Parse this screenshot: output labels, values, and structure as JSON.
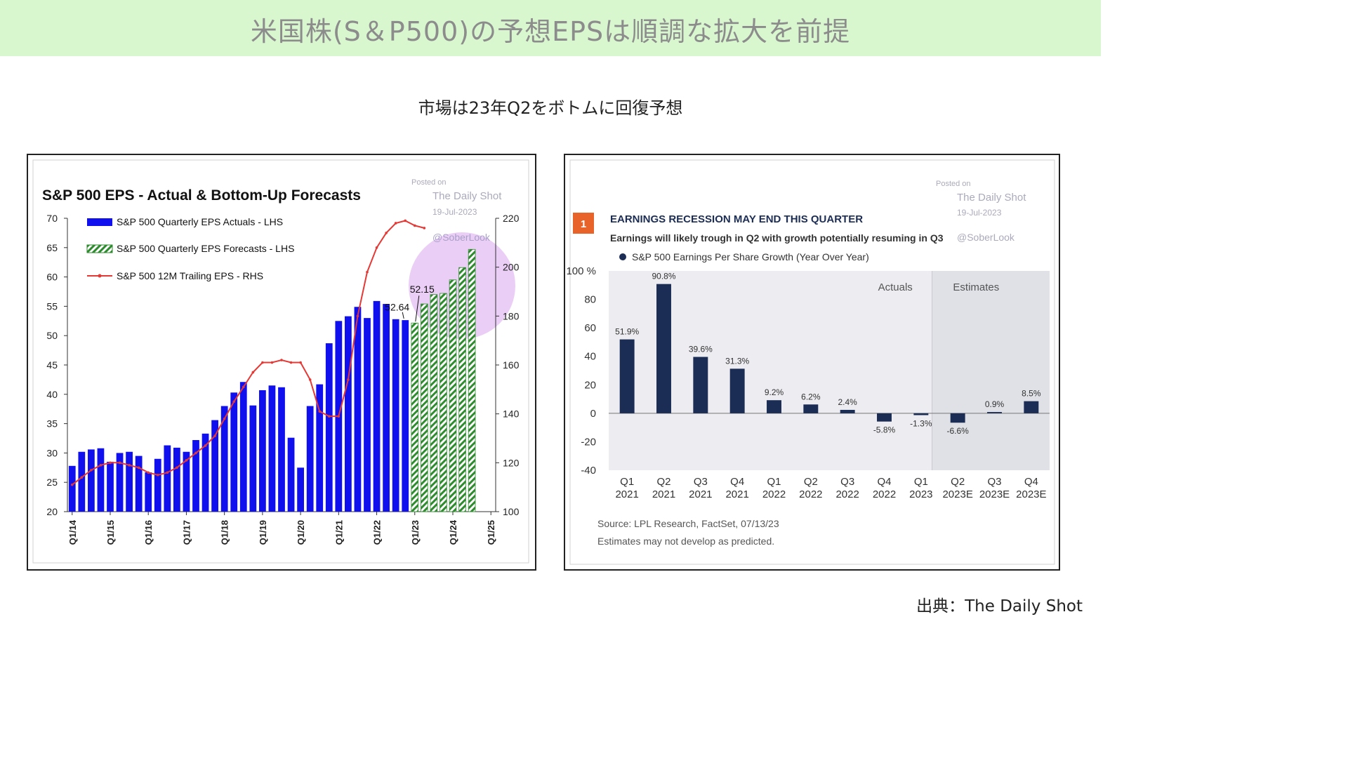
{
  "header": {
    "title": "米国株(S＆P500)の予想EPSは順調な拡大を前提",
    "subtitle": "市場は23年Q2をボトムに回復予想"
  },
  "source": "出典：The Daily Shot",
  "colors": {
    "banner_bg": "#d9f7cf",
    "actual_bar": "#1010ee",
    "forecast_bar": "#2e8b2e",
    "trailing_line": "#e53935",
    "highlight": "#d8a6ee",
    "navy_bar": "#1c2d55",
    "plot_bg": "#ececf1",
    "estimate_bg": "#dfe1e6",
    "label_badge": "#e8632a"
  },
  "chart_data": [
    {
      "type": "bar",
      "title": "S&P 500 EPS - Actual & Bottom-Up Forecasts",
      "watermark": [
        "Posted on",
        "The Daily Shot",
        "19-Jul-2023",
        "@SoberLook"
      ],
      "legend": [
        "S&P 500 Quarterly EPS Actuals - LHS",
        "S&P 500 Quarterly EPS Forecasts - LHS",
        "S&P 500 12M Trailing EPS - RHS"
      ],
      "legend_position": "top-left",
      "ylim_left": [
        20,
        70
      ],
      "yticks_left": [
        "70",
        "65",
        "60",
        "55",
        "50",
        "45",
        "40",
        "35",
        "30",
        "25",
        "20"
      ],
      "ylim_right": [
        100,
        220
      ],
      "yticks_right": [
        "220",
        "200",
        "180",
        "160",
        "140",
        "120",
        "100"
      ],
      "xticks": [
        "Q1/14",
        "Q1/15",
        "Q1/16",
        "Q1/17",
        "Q1/18",
        "Q1/19",
        "Q1/20",
        "Q1/21",
        "Q1/22",
        "Q1/23",
        "Q1/24",
        "Q1/25"
      ],
      "annotations": [
        "52.64",
        "52.15"
      ],
      "series": [
        {
          "name": "S&P 500 Quarterly EPS Actuals - LHS",
          "values": [
            27.8,
            30.2,
            30.6,
            30.8,
            28.5,
            30.0,
            30.2,
            29.5,
            26.7,
            29.0,
            31.3,
            30.9,
            30.2,
            32.2,
            33.3,
            35.6,
            38.0,
            40.3,
            42.1,
            38.1,
            40.7,
            41.5,
            41.2,
            32.6,
            27.5,
            38.0,
            41.7,
            48.7,
            52.5,
            53.3,
            54.9,
            53.0,
            55.9,
            55.4,
            52.8,
            52.64
          ]
        },
        {
          "name": "S&P 500 Quarterly EPS Forecasts - LHS",
          "values": [
            52.15,
            55.4,
            57.0,
            57.2,
            59.5,
            61.6,
            64.7
          ]
        },
        {
          "name": "S&P 500 12M Trailing EPS - RHS",
          "values": [
            111,
            114,
            117,
            119,
            120,
            120,
            119,
            118,
            116,
            115,
            116,
            118,
            121,
            124,
            127,
            131,
            138,
            145,
            151,
            157,
            161,
            161,
            162,
            161,
            161,
            154,
            141,
            139,
            139,
            154,
            180,
            198,
            208,
            214,
            218,
            219,
            217,
            216
          ]
        }
      ]
    },
    {
      "type": "bar",
      "badge": "1",
      "title": "EARNINGS RECESSION MAY END THIS QUARTER",
      "subtitle": "Earnings will likely trough in Q2 with growth potentially resuming in Q3",
      "legend": "S&P 500 Earnings Per Share Growth (Year Over Year)",
      "watermark": [
        "Posted on",
        "The Daily Shot",
        "19-Jul-2023",
        "@SoberLook"
      ],
      "region_labels": [
        "Actuals",
        "Estimates"
      ],
      "ylim": [
        -40,
        100
      ],
      "yticks": [
        "100 %",
        "80",
        "60",
        "40",
        "20",
        "0",
        "-20",
        "-40"
      ],
      "categories": [
        [
          "Q1",
          "2021"
        ],
        [
          "Q2",
          "2021"
        ],
        [
          "Q3",
          "2021"
        ],
        [
          "Q4",
          "2021"
        ],
        [
          "Q1",
          "2022"
        ],
        [
          "Q2",
          "2022"
        ],
        [
          "Q3",
          "2022"
        ],
        [
          "Q4",
          "2022"
        ],
        [
          "Q1",
          "2023"
        ],
        [
          "Q2",
          "2023E"
        ],
        [
          "Q3",
          "2023E"
        ],
        [
          "Q4",
          "2023E"
        ]
      ],
      "values": [
        51.9,
        90.8,
        39.6,
        31.3,
        9.2,
        6.2,
        2.4,
        -5.8,
        -1.3,
        -6.6,
        0.9,
        8.5
      ],
      "data_labels": [
        "51.9%",
        "90.8%",
        "39.6%",
        "31.3%",
        "9.2%",
        "6.2%",
        "2.4%",
        "-5.8%",
        "-1.3%",
        "-6.6%",
        "0.9%",
        "8.5%"
      ],
      "footnotes": [
        "Source: LPL Research,  FactSet,  07/13/23",
        "Estimates may not develop as predicted."
      ]
    }
  ]
}
